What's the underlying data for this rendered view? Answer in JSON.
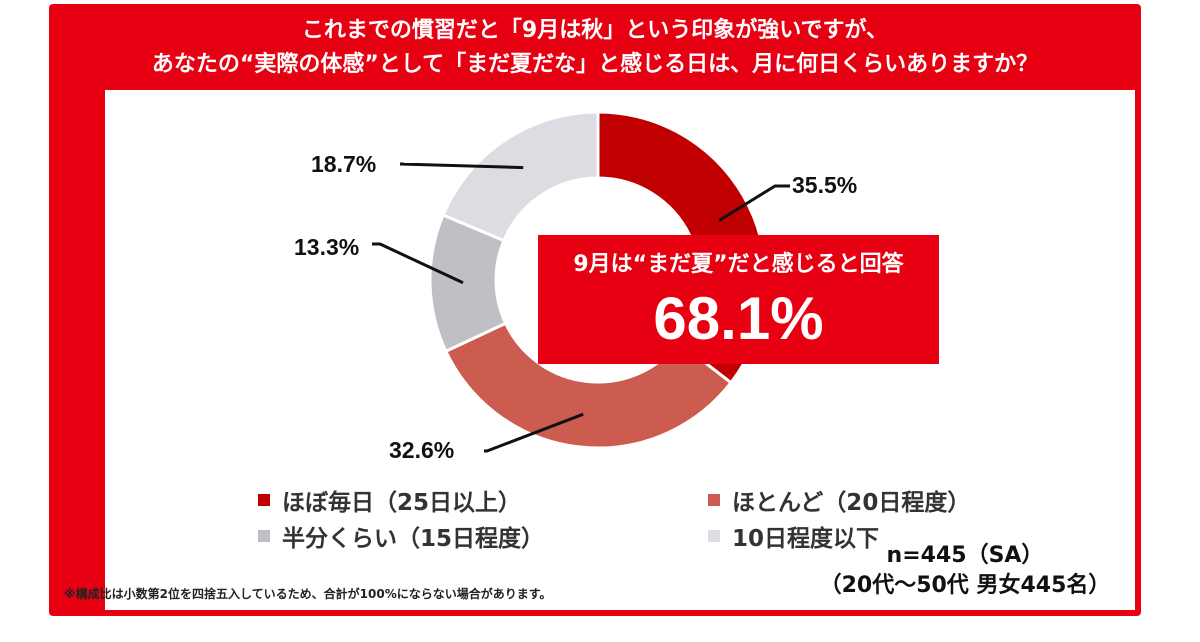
{
  "title_lines": [
    "これまでの慣習だと「9月は秋」という印象が強いですが、",
    "あなたの“実際の体感”として「まだ夏だな」と感じる日は、月に何日くらいありますか？"
  ],
  "callout": {
    "label": "9月は“まだ夏”だと感じると回答",
    "value": "68.1%"
  },
  "sample": {
    "line1": "n=445（SA）",
    "line2": "（20代～50代 男女445名）"
  },
  "footnote": "※構成比は小数第2位を四捨五入しているため、合計が100%にならない場合があります。",
  "colors": {
    "frame": "#e60012",
    "series": [
      "#c00000",
      "#cd5c50",
      "#bfbfc4",
      "#dcdce2"
    ]
  },
  "chart_data": {
    "type": "donut",
    "categories": [
      "ほぼ毎日（25日以上）",
      "ほとんど（20日程度）",
      "半分くらい（15日程度）",
      "10日程度以下"
    ],
    "values": [
      35.5,
      32.6,
      13.3,
      18.7
    ],
    "labels": [
      "35.5%",
      "32.6%",
      "13.3%",
      "18.7%"
    ],
    "legend_position": "bottom",
    "n": 445
  }
}
